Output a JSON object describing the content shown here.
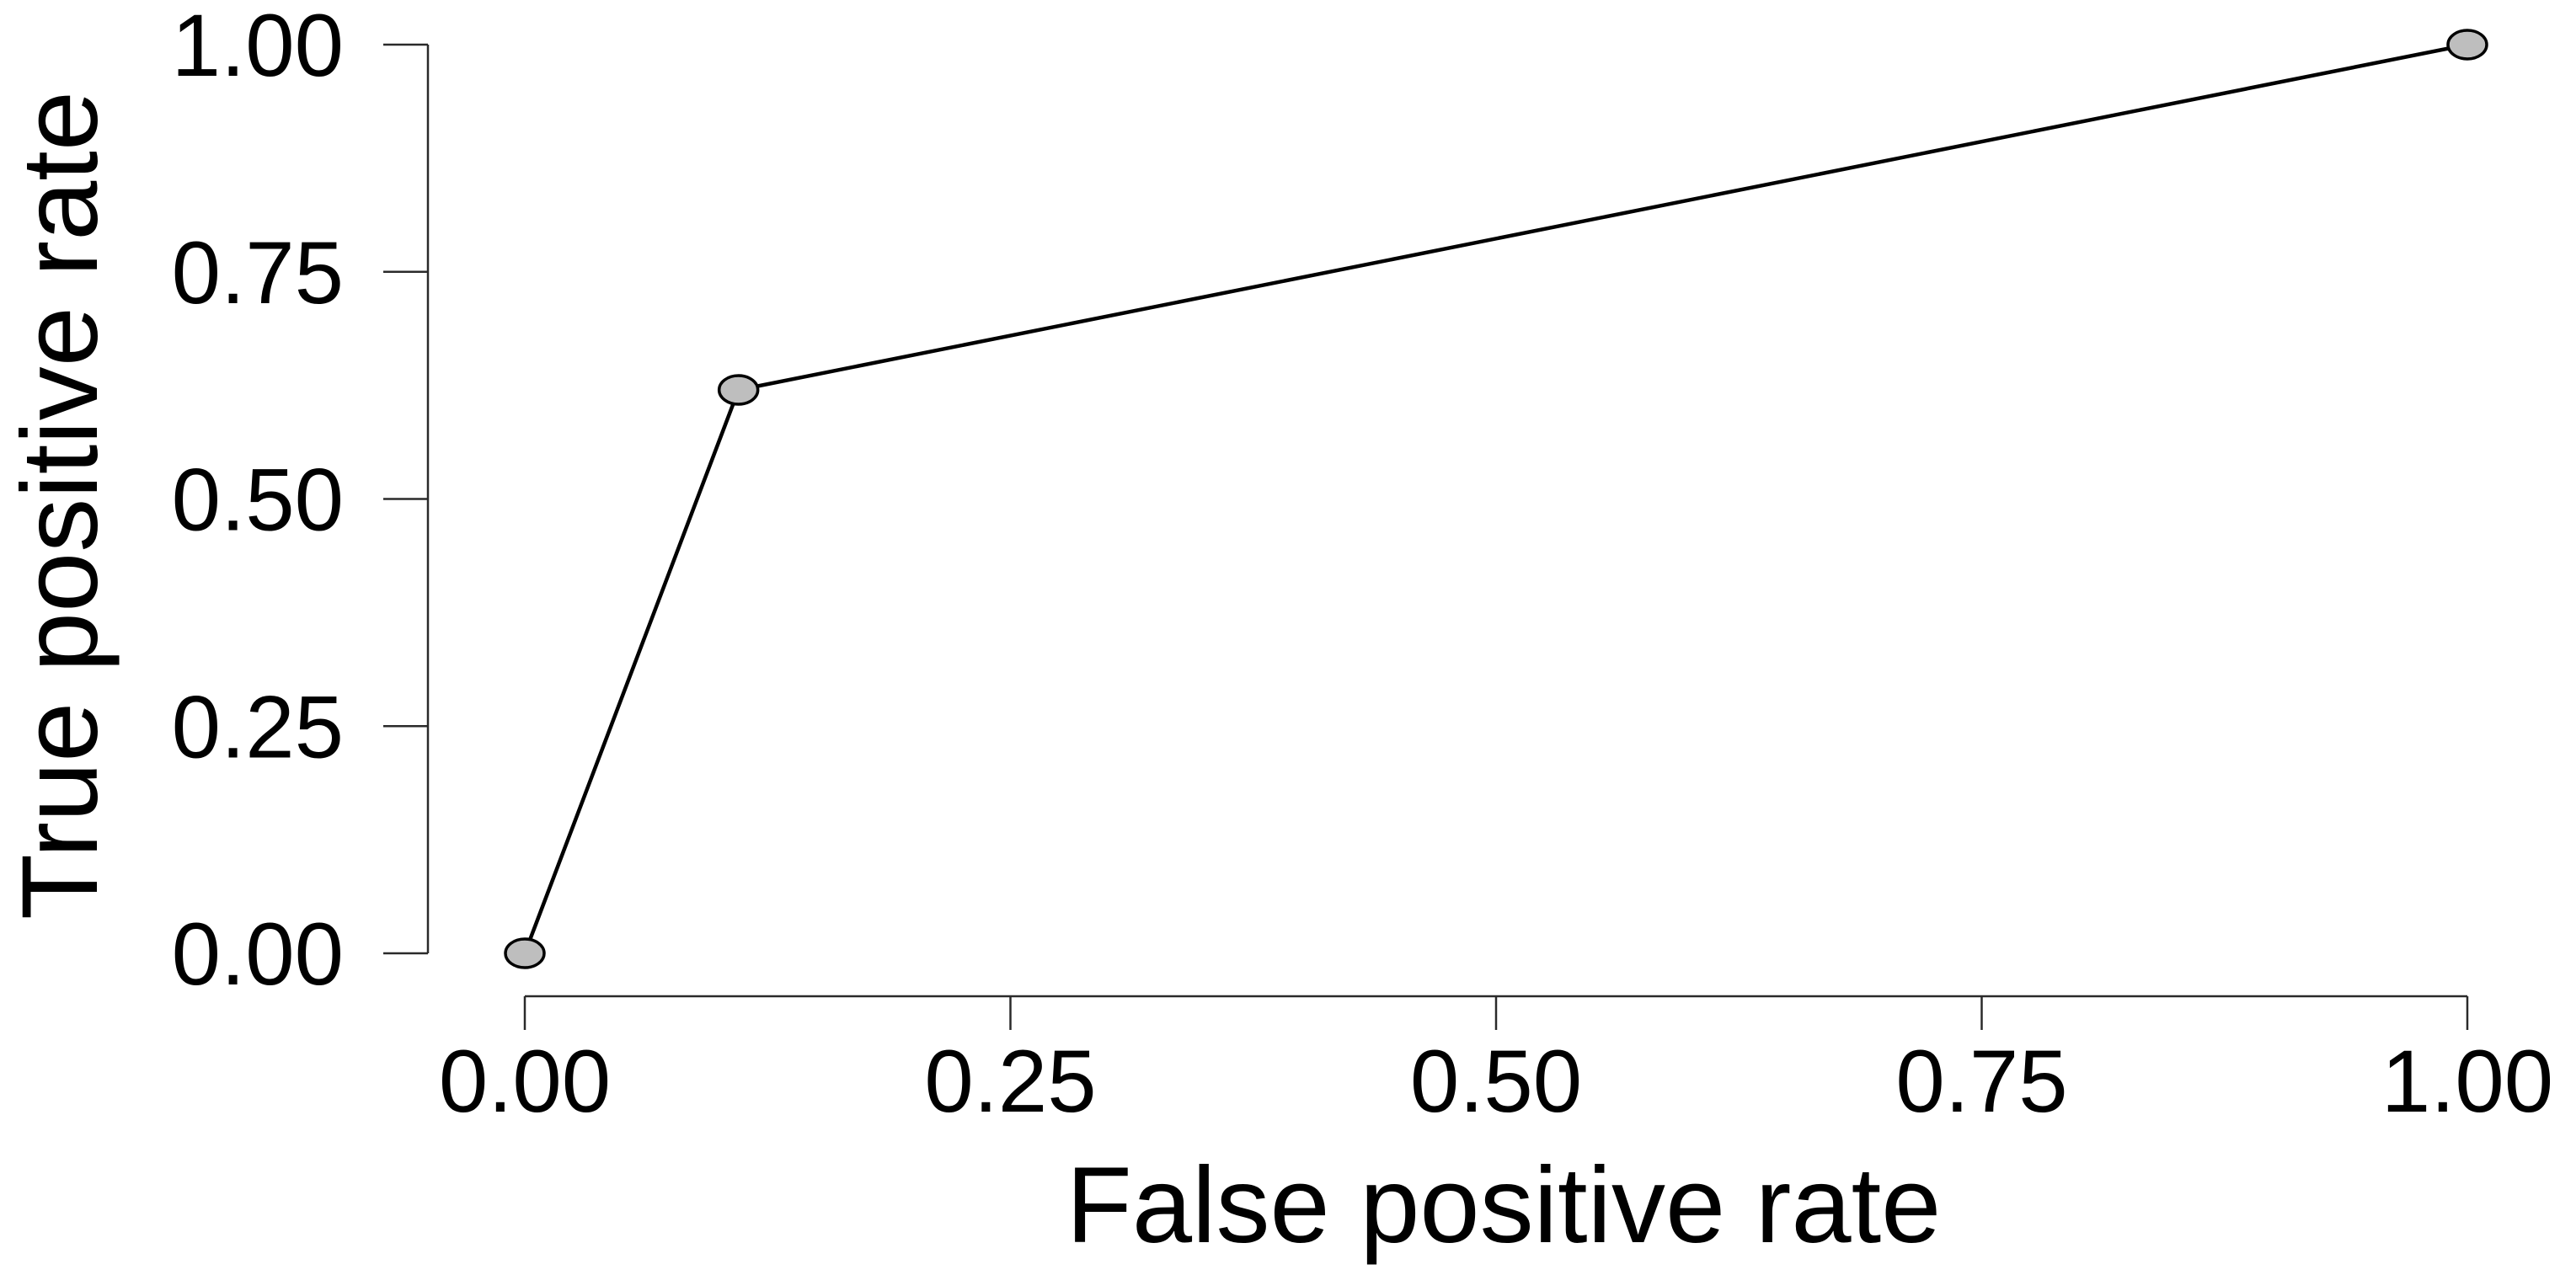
{
  "chart_data": {
    "type": "line",
    "title": "",
    "xlabel": "False positive rate",
    "ylabel": "True positive rate",
    "x": [
      0.0,
      0.11,
      1.0
    ],
    "y": [
      0.0,
      0.62,
      1.0
    ],
    "x_ticks": {
      "values": [
        0.0,
        0.25,
        0.5,
        0.75,
        1.0
      ],
      "labels": [
        "0.00",
        "0.25",
        "0.50",
        "0.75",
        "1.00"
      ]
    },
    "y_ticks": {
      "values": [
        0.0,
        0.25,
        0.5,
        0.75,
        1.0
      ],
      "labels": [
        "0.00",
        "0.25",
        "0.50",
        "0.75",
        "1.00"
      ]
    },
    "xlim": [
      0,
      1
    ],
    "ylim": [
      0,
      1
    ],
    "grid": false,
    "legend": "none",
    "marker": "filled-circle",
    "colors": {
      "line": "#000000",
      "marker_fill": "#bebebe",
      "marker_stroke": "#000000",
      "axis": "#2a2a2a",
      "text": "#000000",
      "background": "#ffffff"
    }
  }
}
